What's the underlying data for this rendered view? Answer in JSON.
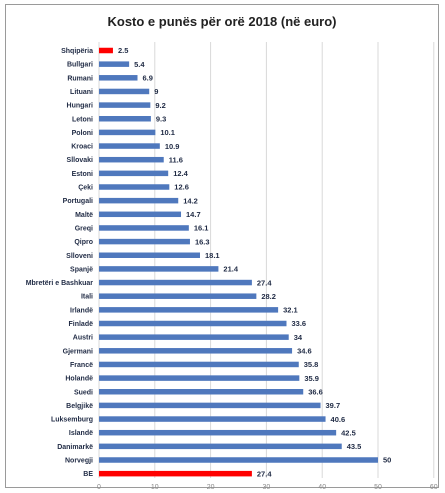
{
  "colors": {
    "bar": "#4f78bd",
    "highlight": "#ff0000",
    "gridline": "#d9d9d9"
  },
  "chart_data": {
    "type": "bar",
    "orientation": "horizontal",
    "title": "Kosto e punës për orë 2018 (në euro)",
    "xlabel": "",
    "ylabel": "",
    "xlim": [
      0,
      60
    ],
    "xticks": [
      0,
      10,
      20,
      30,
      40,
      50,
      60
    ],
    "grid": true,
    "legend": "none",
    "categories": [
      "Shqipëria",
      "Bullgari",
      "Rumani",
      "Lituani",
      "Hungari",
      "Letoni",
      "Poloni",
      "Kroaci",
      "Sllovaki",
      "Estoni",
      "Çeki",
      "Portugali",
      "Maltë",
      "Greqi",
      "Qipro",
      "Slloveni",
      "Spanjë",
      "Mbretëri e Bashkuar",
      "Itali",
      "Irlandë",
      "Finladë",
      "Austri",
      "Gjermani",
      "Francë",
      "Holandë",
      "Suedi",
      "Belgjikë",
      "Luksemburg",
      "Islandë",
      "Danimarkë",
      "Norvegji",
      "BE"
    ],
    "values": [
      2.5,
      5.4,
      6.9,
      9,
      9.2,
      9.3,
      10.1,
      10.9,
      11.6,
      12.4,
      12.6,
      14.2,
      14.7,
      16.1,
      16.3,
      18.1,
      21.4,
      27.4,
      28.2,
      32.1,
      33.6,
      34,
      34.6,
      35.8,
      35.9,
      36.6,
      39.7,
      40.6,
      42.5,
      43.5,
      50,
      27.4
    ],
    "value_labels": [
      "2.5",
      "5.4",
      "6.9",
      "9",
      "9.2",
      "9.3",
      "10.1",
      "10.9",
      "11.6",
      "12.4",
      "12.6",
      "14.2",
      "14.7",
      "16.1",
      "16.3",
      "18.1",
      "21.4",
      "27.4",
      "28.2",
      "32.1",
      "33.6",
      "34",
      "34.6",
      "35.8",
      "35.9",
      "36.6",
      "39.7",
      "40.6",
      "42.5",
      "43.5",
      "50",
      "27.4"
    ],
    "highlighted": [
      "Shqipëria",
      "BE"
    ]
  }
}
